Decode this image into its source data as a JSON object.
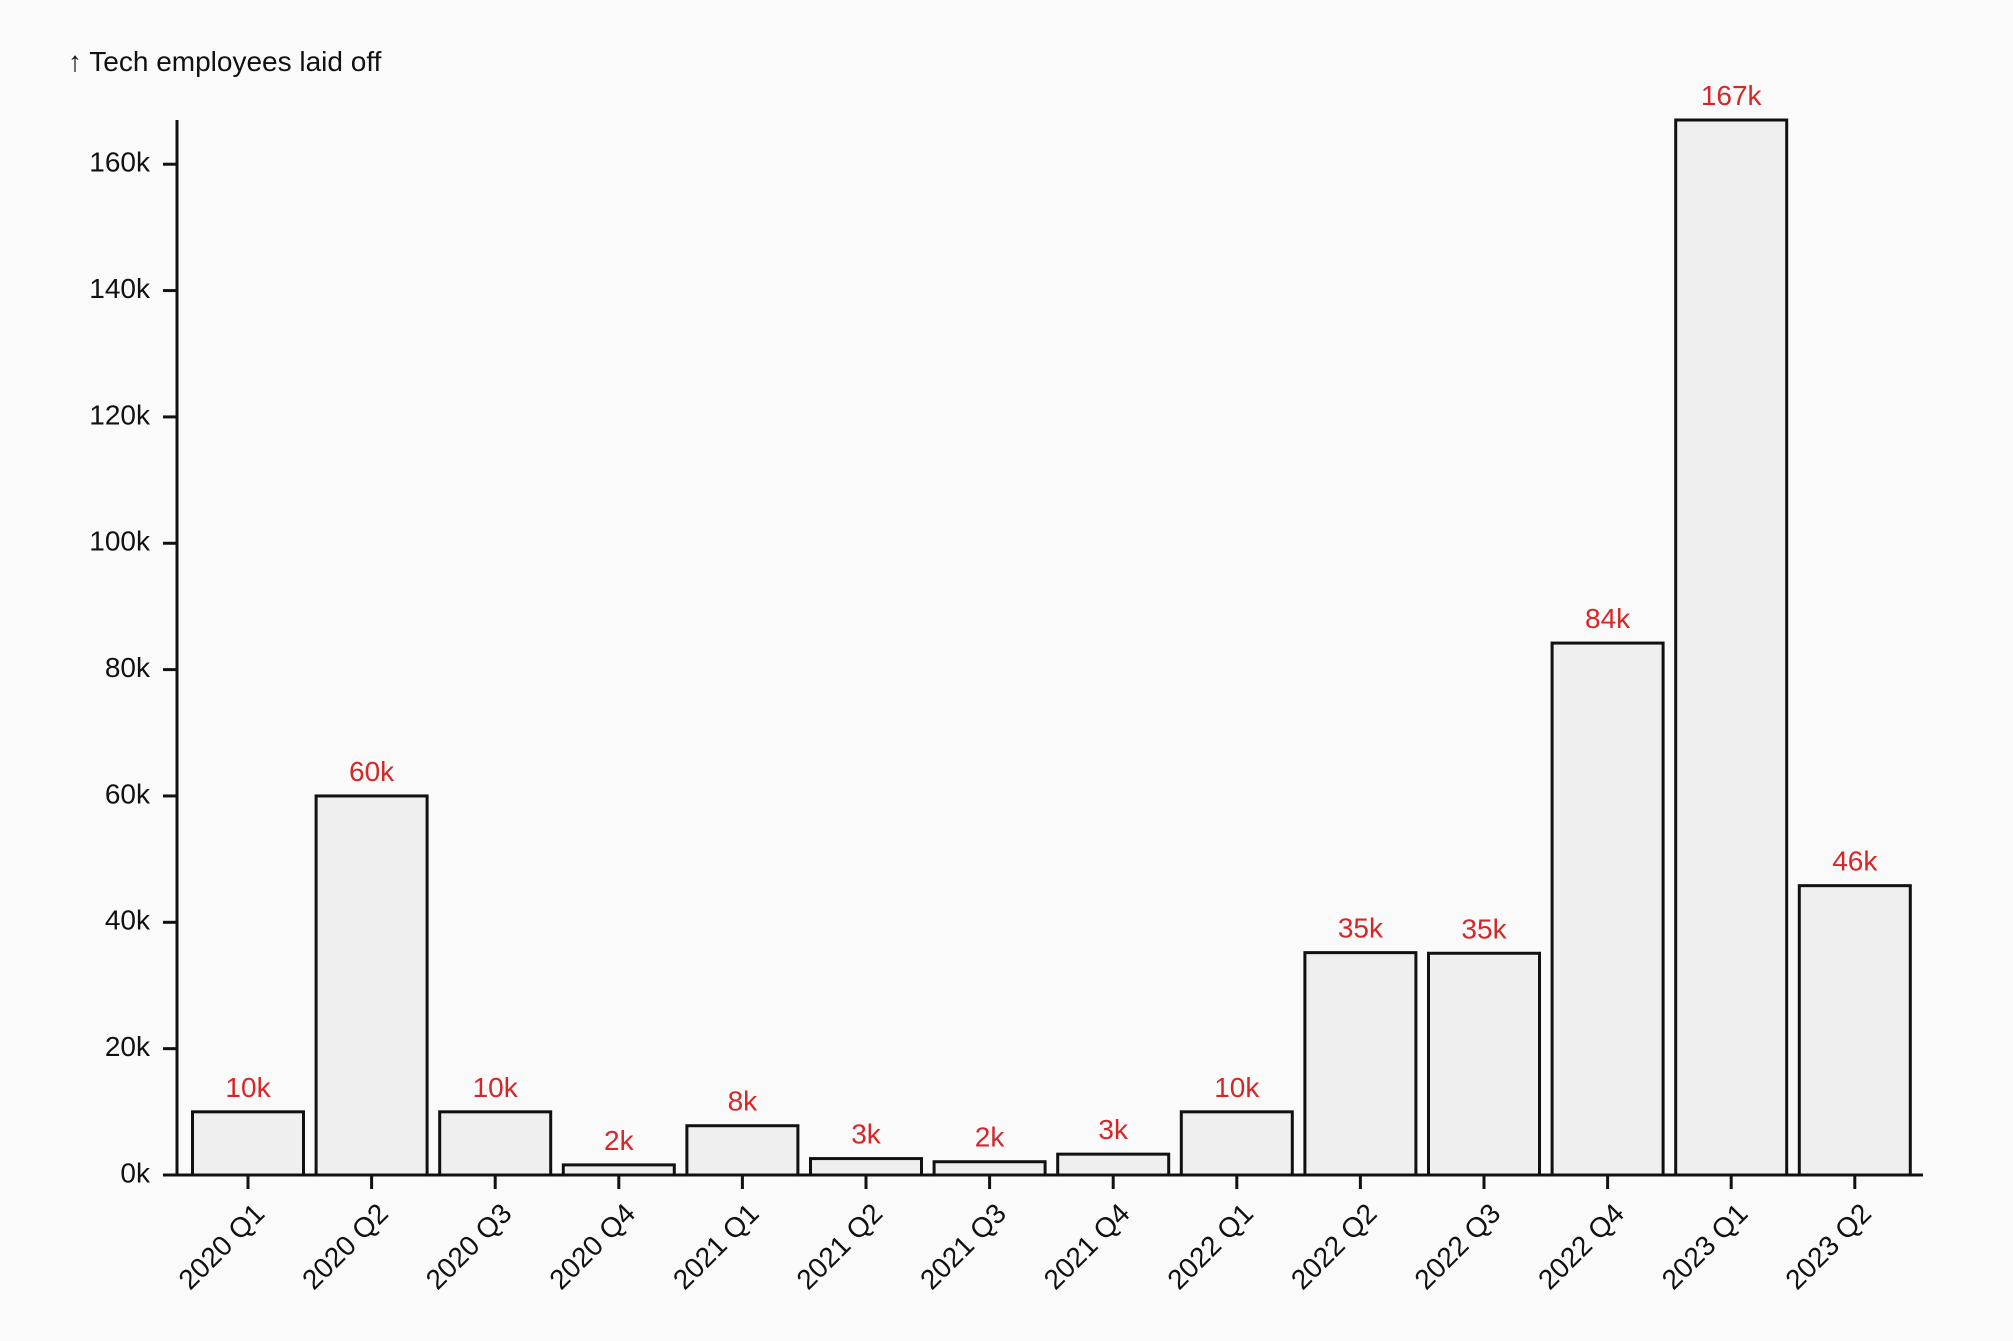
{
  "chart_data": {
    "type": "bar",
    "ylabel": "↑ Tech employees laid off",
    "categories": [
      "2020 Q1",
      "2020 Q2",
      "2020 Q3",
      "2020 Q4",
      "2021 Q1",
      "2021 Q2",
      "2021 Q3",
      "2021 Q4",
      "2022 Q1",
      "2022 Q2",
      "2022 Q3",
      "2022 Q4",
      "2023 Q1",
      "2023 Q2"
    ],
    "values": [
      10000,
      60000,
      10000,
      1600,
      7800,
      2600,
      2100,
      3300,
      10000,
      35200,
      35100,
      84200,
      167000,
      45800
    ],
    "data_labels": [
      "10k",
      "60k",
      "10k",
      "2k",
      "8k",
      "3k",
      "2k",
      "3k",
      "10k",
      "35k",
      "35k",
      "84k",
      "167k",
      "46k"
    ],
    "ylim": [
      0,
      167000
    ],
    "yticks": [
      0,
      20000,
      40000,
      60000,
      80000,
      100000,
      120000,
      140000,
      160000
    ],
    "ytick_labels": [
      "0k",
      "20k",
      "40k",
      "60k",
      "80k",
      "100k",
      "120k",
      "140k",
      "160k"
    ],
    "grid": false,
    "colors": {
      "bar_fill": "#efefef",
      "bar_stroke": "#111111",
      "data_label": "#d62728",
      "text": "#111111",
      "background": "#fafafa"
    }
  }
}
